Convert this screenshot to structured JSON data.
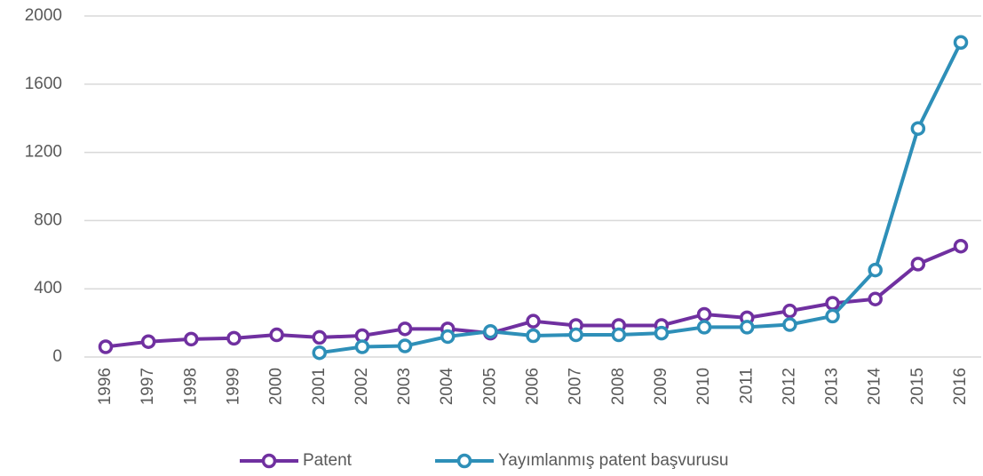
{
  "chart_data": {
    "type": "line",
    "categories": [
      "1996",
      "1997",
      "1998",
      "1999",
      "2000",
      "2001",
      "2002",
      "2003",
      "2004",
      "2005",
      "2006",
      "2007",
      "2008",
      "2009",
      "2010",
      "2011",
      "2012",
      "2013",
      "2014",
      "2015",
      "2016"
    ],
    "series": [
      {
        "name": "Patent",
        "color": "#7030a0",
        "values": [
          60,
          90,
          105,
          110,
          130,
          115,
          125,
          165,
          165,
          140,
          210,
          185,
          185,
          185,
          250,
          230,
          270,
          315,
          340,
          545,
          650
        ]
      },
      {
        "name": "Yayımlanmış patent başvurusu",
        "color": "#2e8fb8",
        "values": [
          null,
          null,
          null,
          null,
          null,
          25,
          60,
          65,
          120,
          150,
          125,
          130,
          130,
          140,
          175,
          175,
          190,
          240,
          510,
          1340,
          1845
        ]
      }
    ],
    "ylim": [
      0,
      2000
    ],
    "yticks": [
      0,
      400,
      800,
      1200,
      1600,
      2000
    ],
    "grid": true,
    "legend": "bottom"
  }
}
